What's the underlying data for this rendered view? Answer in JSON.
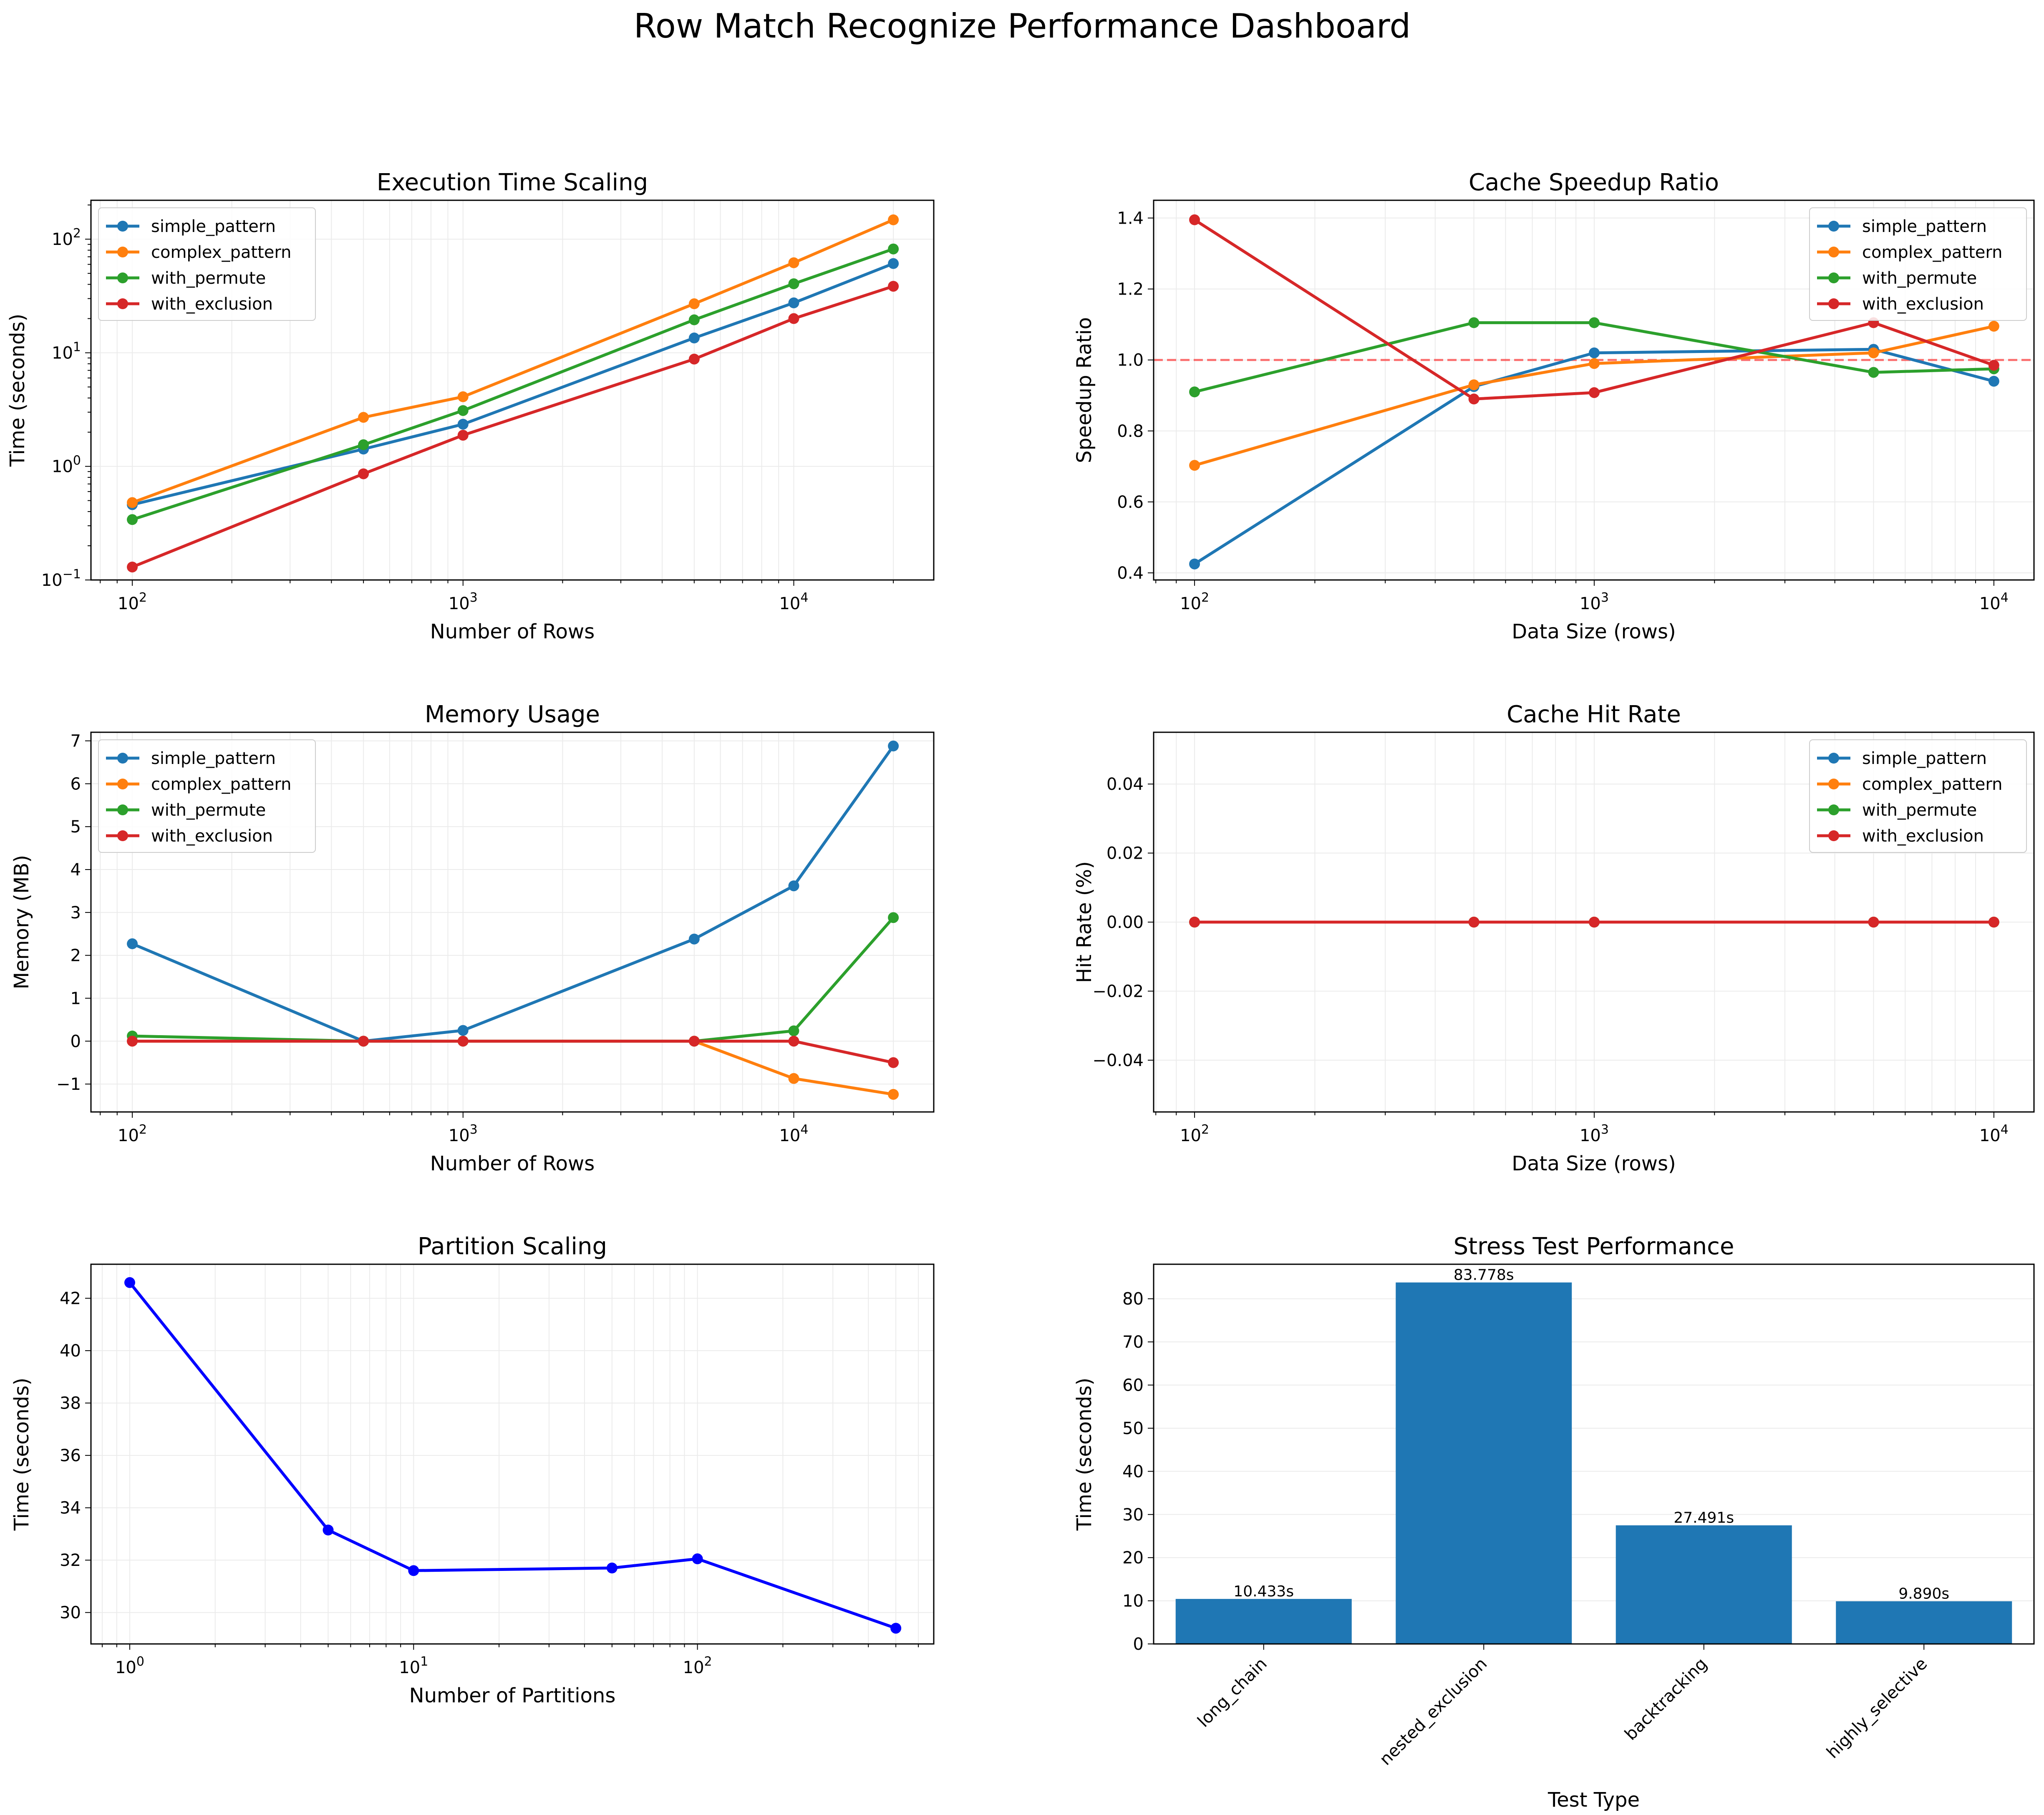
{
  "title": "Row Match Recognize Performance Dashboard",
  "colors": {
    "simple_pattern": "#1f77b4",
    "complex_pattern": "#ff7f0e",
    "with_permute": "#2ca02c",
    "with_exclusion": "#d62728",
    "partition_line": "#0000ff",
    "bar": "#1f77b4",
    "reference_line": "#ff0000"
  },
  "chart_data": [
    {
      "id": "exec",
      "type": "line",
      "title": "Execution Time Scaling",
      "xlabel": "Number of Rows",
      "ylabel": "Time (seconds)",
      "xscale": "log",
      "yscale": "log",
      "xlim": [
        75,
        26500
      ],
      "ylim": [
        0.1,
        220
      ],
      "x": [
        100,
        500,
        1000,
        5000,
        10000,
        20000
      ],
      "xticks": [
        100,
        1000,
        10000
      ],
      "xtick_labels": [
        "10^2",
        "10^3",
        "10^4"
      ],
      "yticks": [
        0.1,
        1,
        10,
        100
      ],
      "ytick_labels": [
        "10^-1",
        "10^0",
        "10^1",
        "10^2"
      ],
      "grid": true,
      "legend": "upper left",
      "series": [
        {
          "name": "simple_pattern",
          "values": [
            0.46,
            1.42,
            2.35,
            13.5,
            27.5,
            61.0
          ]
        },
        {
          "name": "complex_pattern",
          "values": [
            0.48,
            2.7,
            4.1,
            27.0,
            62.0,
            148.0
          ]
        },
        {
          "name": "with_permute",
          "values": [
            0.34,
            1.55,
            3.1,
            19.5,
            40.5,
            82.0
          ]
        },
        {
          "name": "with_exclusion",
          "values": [
            0.13,
            0.86,
            1.88,
            8.8,
            20.0,
            38.5
          ]
        }
      ]
    },
    {
      "id": "speedup",
      "type": "line",
      "title": "Cache Speedup Ratio",
      "xlabel": "Data Size (rows)",
      "ylabel": "Speedup Ratio",
      "xscale": "log",
      "yscale": "linear",
      "xlim": [
        79,
        12600
      ],
      "ylim": [
        0.38,
        1.45
      ],
      "x": [
        100,
        500,
        1000,
        5000,
        10000
      ],
      "xticks": [
        100,
        1000,
        10000
      ],
      "xtick_labels": [
        "10^2",
        "10^3",
        "10^4"
      ],
      "yticks": [
        0.4,
        0.6,
        0.8,
        1.0,
        1.2,
        1.4
      ],
      "ytick_labels": [
        "0.4",
        "0.6",
        "0.8",
        "1.0",
        "1.2",
        "1.4"
      ],
      "grid": true,
      "legend": "upper right",
      "hline": 1.0,
      "series": [
        {
          "name": "simple_pattern",
          "values": [
            0.425,
            0.925,
            1.02,
            1.03,
            0.94
          ]
        },
        {
          "name": "complex_pattern",
          "values": [
            0.703,
            0.93,
            0.99,
            1.02,
            1.095
          ]
        },
        {
          "name": "with_permute",
          "values": [
            0.91,
            1.105,
            1.105,
            0.965,
            0.975
          ]
        },
        {
          "name": "with_exclusion",
          "values": [
            1.395,
            0.89,
            0.908,
            1.105,
            0.985
          ]
        }
      ]
    },
    {
      "id": "memory",
      "type": "line",
      "title": "Memory Usage",
      "xlabel": "Number of Rows",
      "ylabel": "Memory (MB)",
      "xscale": "log",
      "yscale": "linear",
      "xlim": [
        75,
        26500
      ],
      "ylim": [
        -1.65,
        7.2
      ],
      "x": [
        100,
        500,
        1000,
        5000,
        10000,
        20000
      ],
      "xticks": [
        100,
        1000,
        10000
      ],
      "xtick_labels": [
        "10^2",
        "10^3",
        "10^4"
      ],
      "yticks": [
        -1,
        0,
        1,
        2,
        3,
        4,
        5,
        6,
        7
      ],
      "ytick_labels": [
        "−1",
        "0",
        "1",
        "2",
        "3",
        "4",
        "5",
        "6",
        "7"
      ],
      "grid": true,
      "legend": "upper left",
      "series": [
        {
          "name": "simple_pattern",
          "values": [
            2.27,
            0.0,
            0.25,
            2.38,
            3.62,
            6.88
          ]
        },
        {
          "name": "complex_pattern",
          "values": [
            0.0,
            0.0,
            0.0,
            0.0,
            -0.87,
            -1.24
          ]
        },
        {
          "name": "with_permute",
          "values": [
            0.12,
            0.0,
            0.0,
            0.0,
            0.24,
            2.88
          ]
        },
        {
          "name": "with_exclusion",
          "values": [
            0.0,
            0.0,
            0.0,
            0.0,
            0.0,
            -0.5
          ]
        }
      ]
    },
    {
      "id": "hitrate",
      "type": "line",
      "title": "Cache Hit Rate",
      "xlabel": "Data Size (rows)",
      "ylabel": "Hit Rate (%)",
      "xscale": "log",
      "yscale": "linear",
      "xlim": [
        79,
        12600
      ],
      "ylim": [
        -0.055,
        0.055
      ],
      "x": [
        100,
        500,
        1000,
        5000,
        10000
      ],
      "xticks": [
        100,
        1000,
        10000
      ],
      "xtick_labels": [
        "10^2",
        "10^3",
        "10^4"
      ],
      "yticks": [
        -0.04,
        -0.02,
        0.0,
        0.02,
        0.04
      ],
      "ytick_labels": [
        "−0.04",
        "−0.02",
        "0.00",
        "0.02",
        "0.04"
      ],
      "grid": true,
      "legend": "upper right",
      "series": [
        {
          "name": "simple_pattern",
          "values": [
            0,
            0,
            0,
            0,
            0
          ]
        },
        {
          "name": "complex_pattern",
          "values": [
            0,
            0,
            0,
            0,
            0
          ]
        },
        {
          "name": "with_permute",
          "values": [
            0,
            0,
            0,
            0,
            0
          ]
        },
        {
          "name": "with_exclusion",
          "values": [
            0,
            0,
            0,
            0,
            0
          ]
        }
      ]
    },
    {
      "id": "partition",
      "type": "line",
      "title": "Partition Scaling",
      "xlabel": "Number of Partitions",
      "ylabel": "Time (seconds)",
      "xscale": "log",
      "yscale": "linear",
      "xlim": [
        0.73,
        680
      ],
      "ylim": [
        28.8,
        43.3
      ],
      "x": [
        1,
        5,
        10,
        50,
        100,
        500
      ],
      "xticks": [
        1,
        10,
        100
      ],
      "xtick_labels": [
        "10^0",
        "10^1",
        "10^2"
      ],
      "yticks": [
        30,
        32,
        34,
        36,
        38,
        40,
        42
      ],
      "ytick_labels": [
        "30",
        "32",
        "34",
        "36",
        "38",
        "40",
        "42"
      ],
      "grid": true,
      "series": [
        {
          "values": [
            42.6,
            33.15,
            31.6,
            31.7,
            32.05,
            29.4
          ]
        }
      ]
    },
    {
      "id": "stress",
      "type": "bar",
      "title": "Stress Test Performance",
      "xlabel": "Test Type",
      "ylabel": "Time (seconds)",
      "ylim": [
        0,
        88
      ],
      "categories": [
        "long_chain",
        "nested_exclusion",
        "backtracking",
        "highly_selective"
      ],
      "values": [
        10.433,
        83.778,
        27.491,
        9.89
      ],
      "value_labels": [
        "10.433s",
        "83.778s",
        "27.491s",
        "9.890s"
      ],
      "yticks": [
        0,
        10,
        20,
        30,
        40,
        50,
        60,
        70,
        80
      ],
      "ytick_labels": [
        "0",
        "10",
        "20",
        "30",
        "40",
        "50",
        "60",
        "70",
        "80"
      ],
      "grid": true
    }
  ]
}
